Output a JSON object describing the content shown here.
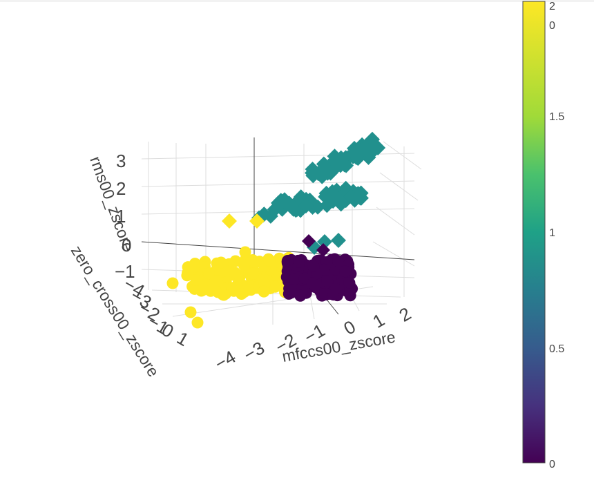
{
  "chart_data": {
    "type": "scatter3d",
    "axes": {
      "x": {
        "title": "mfccs00_zscore",
        "ticks": [
          "2",
          "1",
          "0",
          "−1",
          "−2",
          "−3",
          "−4"
        ]
      },
      "y": {
        "title": "zero_cross00_zscore",
        "ticks": [
          "−4",
          "−3",
          "−2",
          "−1",
          "0",
          "1"
        ]
      },
      "z": {
        "title": "rms00_zscore",
        "ticks": [
          "3",
          "2",
          "1",
          "0",
          "−1"
        ]
      }
    },
    "colorbar": {
      "colorscale": "Viridis",
      "range": [
        0,
        2
      ],
      "ticks": [
        "0",
        "0.5",
        "1",
        "1.5",
        "2"
      ],
      "extra_tick": "0"
    },
    "clusters": [
      {
        "label": 0,
        "color": "#440154",
        "symbol": "circle",
        "approx_count": 160
      },
      {
        "label": 1,
        "color": "#21908d",
        "symbol": "diamond",
        "approx_count": 120
      },
      {
        "label": 2,
        "color": "#fde725",
        "symbol": "circle",
        "approx_count": 170
      }
    ]
  }
}
